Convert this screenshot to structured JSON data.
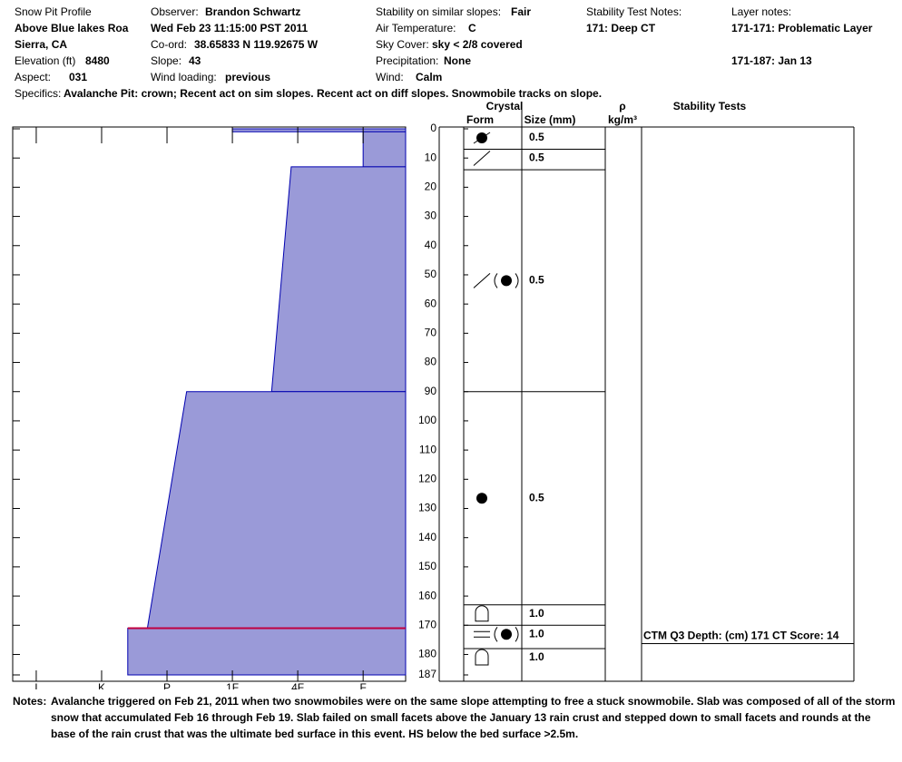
{
  "header": {
    "title": "Snow Pit Profile",
    "location": "Above Blue lakes Roa",
    "region": "Sierra, CA",
    "elevation_label": "Elevation (ft)",
    "elevation": "8480",
    "aspect_label": "Aspect:",
    "aspect": "031",
    "observer_label": "Observer:",
    "observer": "Brandon Schwartz",
    "datetime": "Wed Feb 23 11:15:00 PST 2011",
    "coord_label": "Co-ord:",
    "coord": "38.65833 N 119.92675 W",
    "slope_label": "Slope:",
    "slope": "43",
    "wind_loading_label": "Wind loading:",
    "wind_loading": "previous",
    "stability_label": "Stability on similar slopes:",
    "stability": "Fair",
    "air_temp_label": "Air Temperature:",
    "air_temp": "C",
    "sky_label": "Sky Cover:",
    "sky": "sky < 2/8 covered",
    "precip_label": "Precipitation:",
    "precip": "None",
    "wind_label": "Wind:",
    "wind": "Calm",
    "test_notes_label": "Stability Test Notes:",
    "test_notes": [
      "171: Deep CT"
    ],
    "layer_notes_label": "Layer notes:",
    "layer_notes": [
      "171-171: Problematic Layer",
      "171-187: Jan 13"
    ],
    "specifics_label": "Specifics:",
    "specifics": "Avalanche Pit: crown; Recent act on sim slopes. Recent act on diff slopes. Snowmobile tracks on slope."
  },
  "chart_data": {
    "type": "hardness-profile",
    "ylim": [
      0,
      187
    ],
    "yticks": [
      0,
      10,
      20,
      30,
      40,
      50,
      60,
      70,
      80,
      90,
      100,
      110,
      120,
      130,
      140,
      150,
      160,
      170,
      180,
      187
    ],
    "xlim": [
      6.36,
      0.35
    ],
    "xticks": [
      {
        "value": 6,
        "label": "I"
      },
      {
        "value": 5,
        "label": "K"
      },
      {
        "value": 4,
        "label": "P"
      },
      {
        "value": 3,
        "label": "1F"
      },
      {
        "value": 2,
        "label": "4F"
      },
      {
        "value": 1,
        "label": "F"
      }
    ],
    "fill": "#9a9ad8",
    "line_color": "#0000b0",
    "critical_depth": 171,
    "critical_color": "#c00040",
    "layers": [
      {
        "top": 0,
        "bottom": 1,
        "hardness_top": 3,
        "hardness_bottom": 3
      },
      {
        "top": 1,
        "bottom": 13,
        "hardness_top": 1,
        "hardness_bottom": 1
      },
      {
        "top": 13,
        "bottom": 90,
        "hardness_top": 2.1,
        "hardness_bottom": 2.4
      },
      {
        "top": 90,
        "bottom": 171,
        "hardness_top": 3.7,
        "hardness_bottom": 4.3
      },
      {
        "top": 171,
        "bottom": 187,
        "hardness_top": 4.6,
        "hardness_bottom": 4.6
      }
    ]
  },
  "crystals": {
    "header": "Crystal",
    "form_header": "Form",
    "size_header": "Size (mm)",
    "density_header": "ρ",
    "density_unit": "kg/m³",
    "rows": [
      {
        "top": 0,
        "bottom": 7,
        "size": "0.5"
      },
      {
        "top": 7,
        "bottom": 14,
        "size": "0.5"
      },
      {
        "top": 14,
        "bottom": 90,
        "size": "0.5"
      },
      {
        "top": 90,
        "bottom": 163,
        "size": "0.5"
      },
      {
        "top": 163,
        "bottom": 170,
        "size": "1.0"
      },
      {
        "top": 170,
        "bottom": 178,
        "size": "1.0"
      },
      {
        "top": 178,
        "bottom": 187,
        "size": "1.0"
      }
    ]
  },
  "stability": {
    "header": "Stability Tests",
    "results": [
      {
        "depth": 171,
        "text": "CTM Q3 Depth: (cm) 171 CT Score: 14"
      }
    ]
  },
  "notes": {
    "label": "Notes:",
    "text": "Avalanche triggered on Feb 21, 2011 when two snowmobiles were on the same slope attempting to free a stuck snowmobile. Slab was composed of all of the storm snow that accumulated Feb 16 through Feb 19. Slab failed on small facets above the January 13 rain crust and stepped down to small facets and rounds at the base of the rain crust that was the ultimate bed surface in this event. HS below the bed surface >2.5m."
  }
}
